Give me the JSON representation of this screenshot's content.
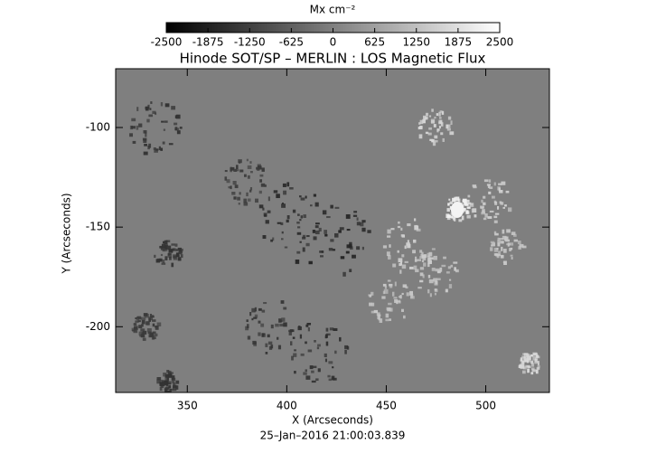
{
  "chart_data": {
    "type": "image",
    "title": "Hinode SOT/SP – MERLIN : LOS Magnetic Flux",
    "colorbar_label": "Mx cm⁻²",
    "clim": [
      -2500,
      2500
    ],
    "cticks": [
      -2500,
      -1875,
      -1250,
      -625,
      0,
      625,
      1250,
      1875,
      2500
    ],
    "x_label": "X (Arcseconds)",
    "y_label": "Y (Arcseconds)",
    "xlim": [
      314,
      532
    ],
    "xticks": [
      350,
      400,
      450,
      500
    ],
    "ylim": [
      -233,
      -70.5
    ],
    "yticks": [
      -100,
      -150,
      -200
    ],
    "date": "25–Jan–2016 21:00:03.839"
  }
}
